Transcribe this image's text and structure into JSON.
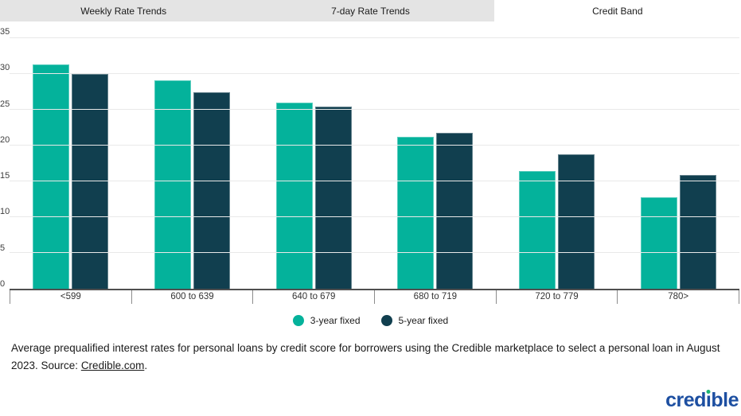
{
  "tabs": [
    {
      "label": "Weekly Rate Trends",
      "active": false
    },
    {
      "label": "7-day Rate Trends",
      "active": false
    },
    {
      "label": "Credit Band",
      "active": true
    }
  ],
  "chart_data": {
    "type": "bar",
    "categories": [
      "<599",
      "600 to 639",
      "640 to 679",
      "680 to 719",
      "720 to 779",
      "780>"
    ],
    "series": [
      {
        "name": "3-year fixed",
        "color": "#04b29b",
        "values": [
          31.3,
          29.1,
          26.0,
          21.2,
          16.4,
          12.8
        ]
      },
      {
        "name": "5-year fixed",
        "color": "#113f4f",
        "values": [
          30.0,
          27.5,
          25.5,
          21.8,
          18.8,
          15.9
        ]
      }
    ],
    "title": "",
    "xlabel": "",
    "ylabel": "",
    "ylim": [
      0,
      35
    ],
    "ytick_step": 5,
    "grid": "horizontal",
    "legend_position": "bottom-center"
  },
  "caption": {
    "text": "Average prequalified interest rates for personal loans by credit score for borrowers using the Credible marketplace to select a personal loan in August 2023. Source: ",
    "link_text": "Credible.com",
    "suffix": "."
  },
  "logo": {
    "text": "credible",
    "part1": "cred",
    "dotless_i": "ı",
    "part2": "ble",
    "color": "#1d4fa1",
    "dot_color": "#1db573"
  },
  "colors": {
    "series_3yr": "#04b29b",
    "series_5yr": "#113f4f",
    "tab_bar_bg": "#e4e4e4",
    "active_tab_bg": "#ffffff",
    "gridline": "#e9e9e9",
    "axis": "#4f4f4f"
  }
}
